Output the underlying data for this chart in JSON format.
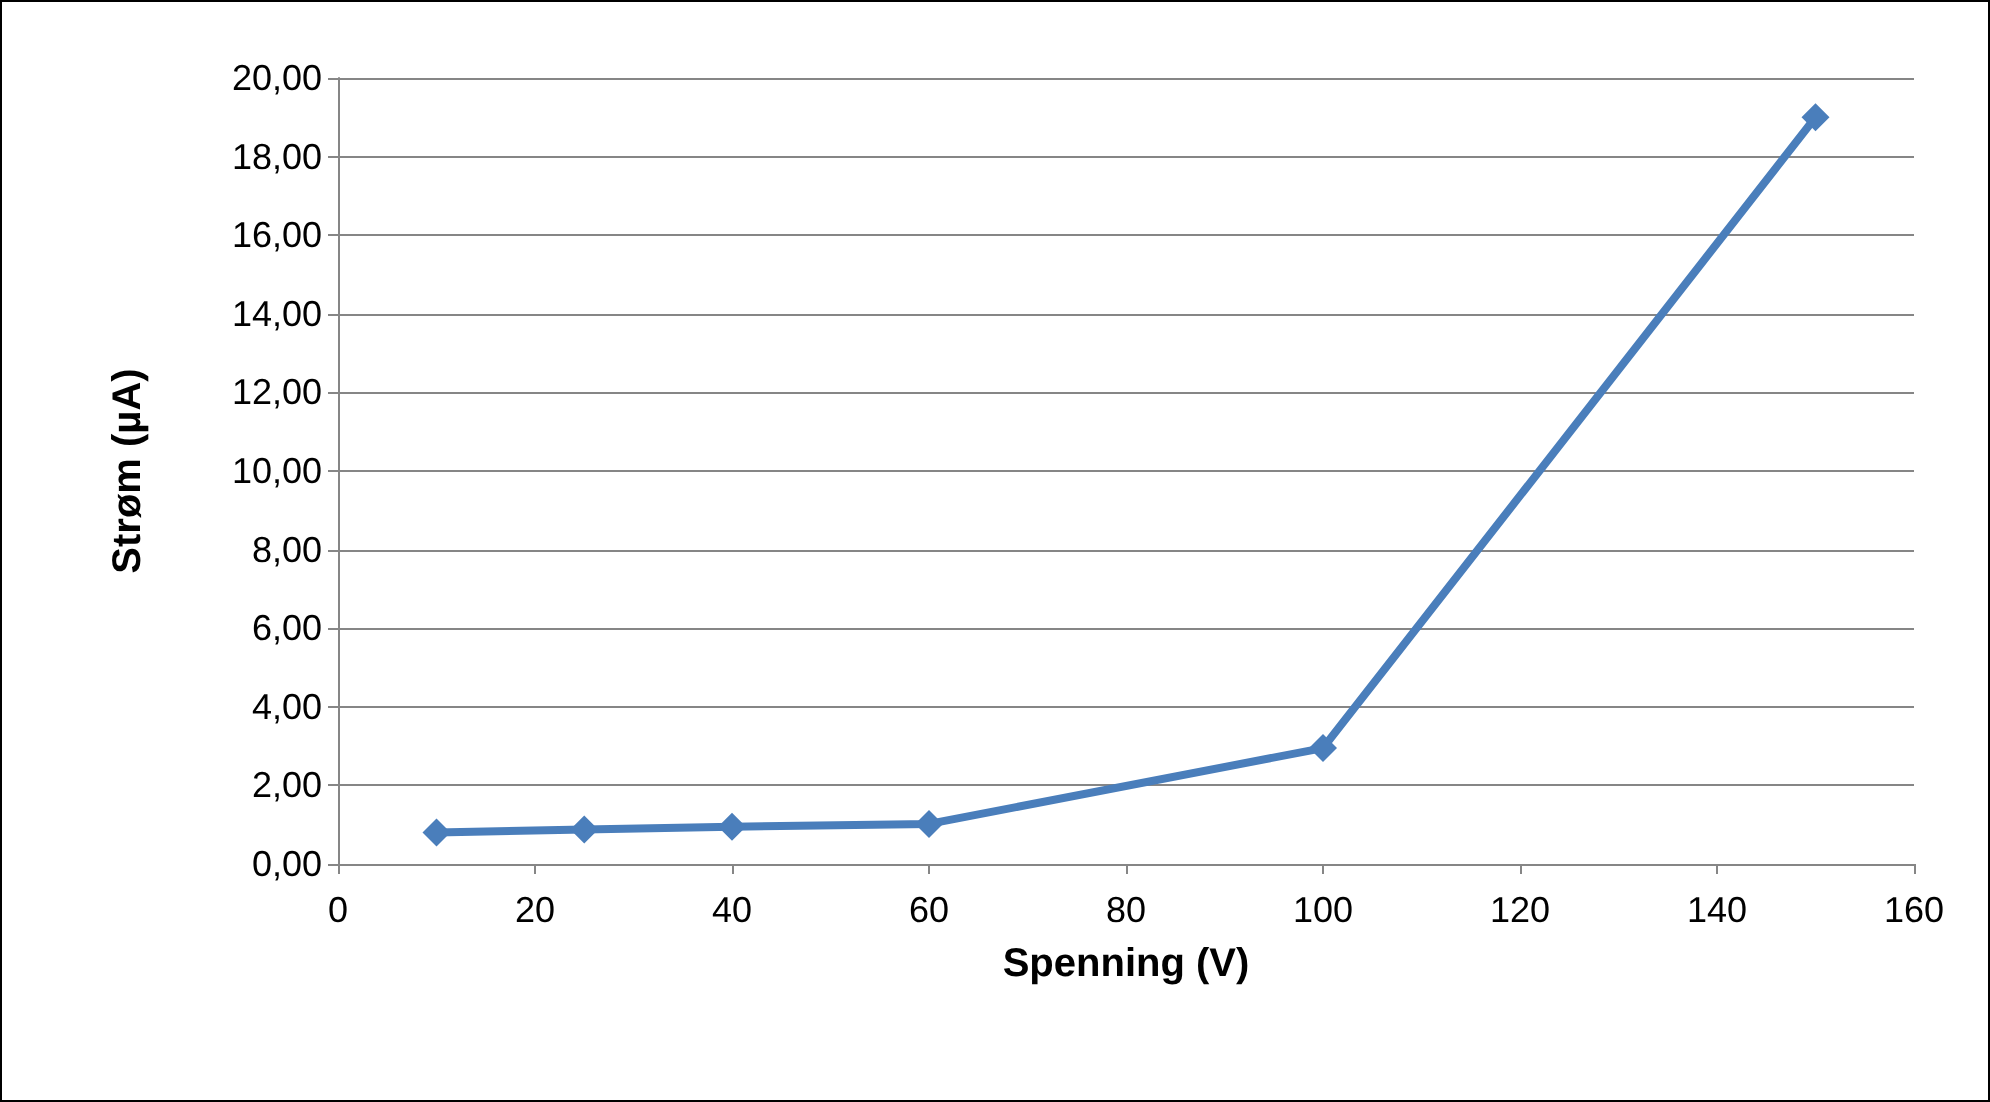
{
  "chart_data": {
    "type": "line",
    "xlabel": "Spenning (V)",
    "ylabel": "Strøm (µA)",
    "x": [
      10,
      25,
      40,
      60,
      100,
      150
    ],
    "series": [
      {
        "color": "#4a7ebb",
        "values": [
          0.8,
          0.88,
          0.95,
          1.02,
          2.95,
          19.0
        ]
      }
    ],
    "xlim": [
      0,
      160
    ],
    "xticks": [
      0,
      20,
      40,
      60,
      80,
      100,
      120,
      140,
      160
    ],
    "ylim": [
      0,
      20
    ],
    "yticks": [
      {
        "value": 0,
        "label": "0,00"
      },
      {
        "value": 2,
        "label": "2,00"
      },
      {
        "value": 4,
        "label": "4,00"
      },
      {
        "value": 6,
        "label": "6,00"
      },
      {
        "value": 8,
        "label": "8,00"
      },
      {
        "value": 10,
        "label": "10,00"
      },
      {
        "value": 12,
        "label": "12,00"
      },
      {
        "value": 14,
        "label": "14,00"
      },
      {
        "value": 16,
        "label": "16,00"
      },
      {
        "value": 18,
        "label": "18,00"
      },
      {
        "value": 20,
        "label": "20,00"
      }
    ],
    "grid": "y",
    "marker": "diamond",
    "line_style": "solid"
  }
}
